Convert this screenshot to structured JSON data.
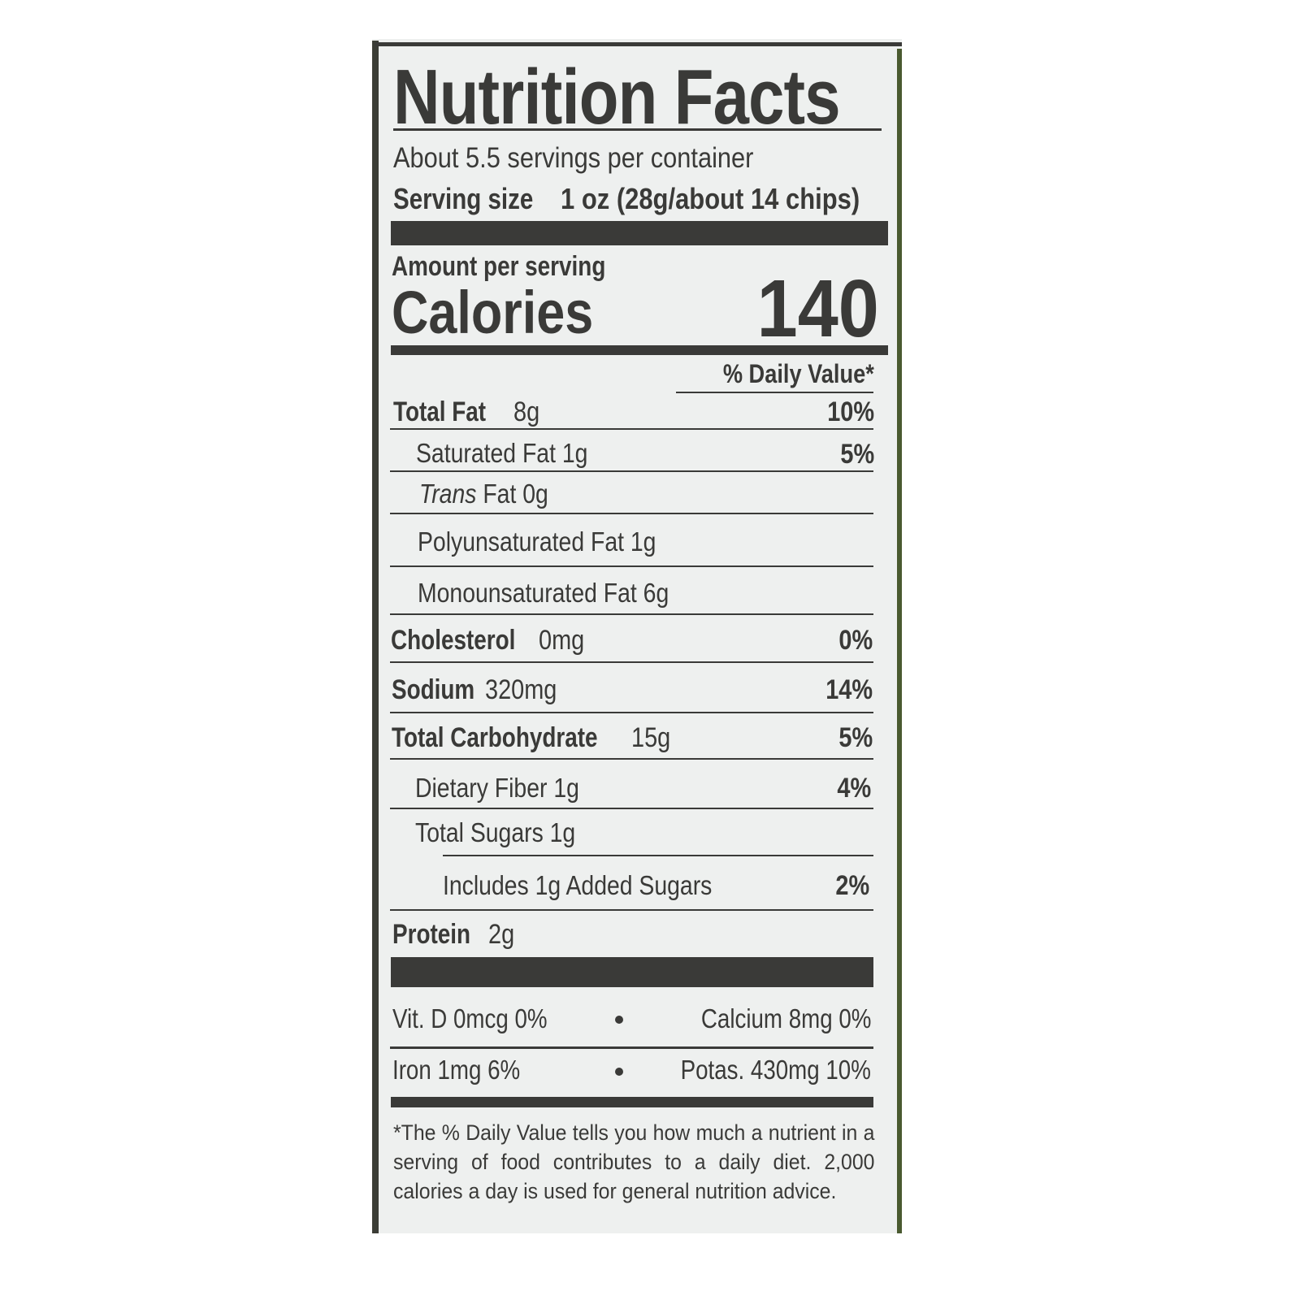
{
  "title": "Nutrition Facts",
  "servings_per_container": "About 5.5 servings per container",
  "serving_size_label": "Serving size",
  "serving_size_value": "1 oz (28g/about 14 chips)",
  "amount_per_serving": "Amount per serving",
  "calories_label": "Calories",
  "calories_value": "140",
  "daily_value_header": "% Daily Value*",
  "nutrients": [
    {
      "label": "Total Fat",
      "amount": "8g",
      "dv": "10%"
    },
    {
      "label": "Saturated Fat 1g",
      "dv": "5%"
    },
    {
      "label_italic": "Trans",
      "label": "Fat 0g"
    },
    {
      "label": "Polyunsaturated Fat 1g"
    },
    {
      "label": "Monounsaturated Fat 6g"
    },
    {
      "label": "Cholesterol",
      "amount": "0mg",
      "dv": "0%"
    },
    {
      "label": "Sodium",
      "amount": "320mg",
      "dv": "14%"
    },
    {
      "label": "Total Carbohydrate",
      "amount": "15g",
      "dv": "5%"
    },
    {
      "label": "Dietary Fiber 1g",
      "dv": "4%"
    },
    {
      "label": "Total Sugars 1g"
    },
    {
      "label": "Includes 1g Added Sugars",
      "dv": "2%"
    },
    {
      "label": "Protein",
      "amount": "2g"
    }
  ],
  "vitamins": [
    {
      "left": "Vit. D 0mcg 0%",
      "right": "Calcium 8mg 0%"
    },
    {
      "left": "Iron 1mg 6%",
      "right": "Potas. 430mg 10%"
    }
  ],
  "footnote": "*The % Daily Value tells you how much a nutrient in a serving of food contributes to a daily diet. 2,000 calories a day is used for general nutrition advice."
}
